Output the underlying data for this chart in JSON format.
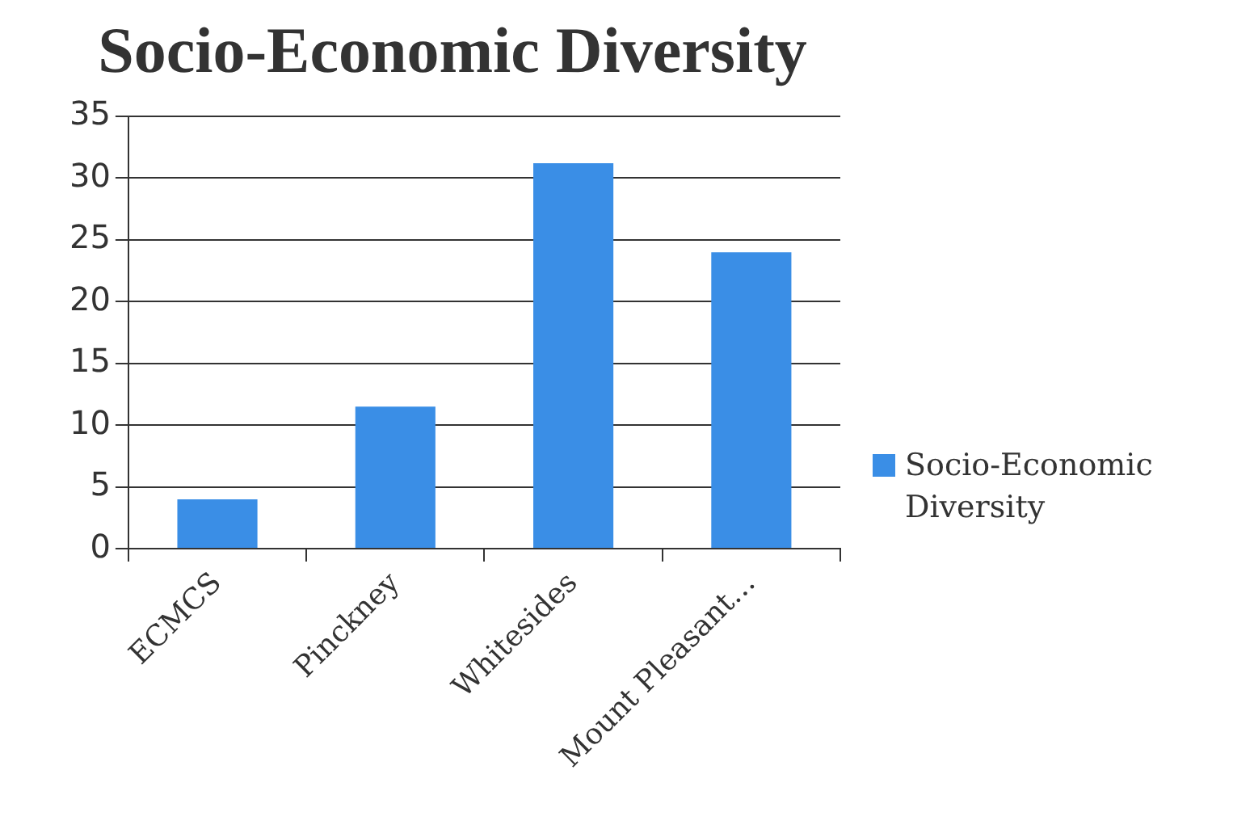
{
  "chart_data": {
    "type": "bar",
    "title": "Socio-Economic Diversity",
    "categories": [
      "ECMCS",
      "Pinckney",
      "Whitesides",
      "Mount Pleasant…"
    ],
    "series": [
      {
        "name": "Socio-Economic Diversity",
        "color": "#3a8ee6",
        "values": [
          4,
          11.5,
          31.2,
          24
        ]
      }
    ],
    "ylim": [
      0,
      35
    ],
    "yticks": [
      0,
      5,
      10,
      15,
      20,
      25,
      30,
      35
    ],
    "grid": "y",
    "legend": "right"
  }
}
